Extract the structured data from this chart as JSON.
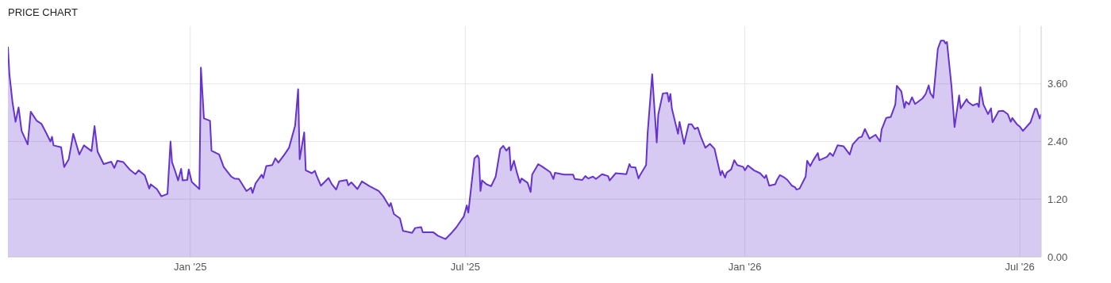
{
  "chart_data": {
    "type": "area",
    "title": "PRICE CHART",
    "x": [
      "2024-09-03",
      "2024-09-04",
      "2024-09-06",
      "2024-09-08",
      "2024-09-10",
      "2024-09-12",
      "2024-09-16",
      "2024-09-18",
      "2024-09-22",
      "2024-09-25",
      "2024-09-28",
      "2024-10-01",
      "2024-10-02",
      "2024-10-03",
      "2024-10-08",
      "2024-10-10",
      "2024-10-13",
      "2024-10-16",
      "2024-10-20",
      "2024-10-23",
      "2024-10-28",
      "2024-10-30",
      "2024-11-01",
      "2024-11-05",
      "2024-11-10",
      "2024-11-12",
      "2024-11-14",
      "2024-11-18",
      "2024-11-22",
      "2024-11-26",
      "2024-11-28",
      "2024-12-02",
      "2024-12-05",
      "2024-12-06",
      "2024-12-10",
      "2024-12-13",
      "2024-12-17",
      "2024-12-19",
      "2024-12-20",
      "2024-12-22",
      "2024-12-24",
      "2024-12-26",
      "2024-12-27",
      "2024-12-30",
      "2024-12-31",
      "2025-01-02",
      "2025-01-07",
      "2025-01-08",
      "2025-01-10",
      "2025-01-14",
      "2025-01-15",
      "2025-01-20",
      "2025-01-23",
      "2025-01-28",
      "2025-01-30",
      "2025-02-02",
      "2025-02-07",
      "2025-02-10",
      "2025-02-11",
      "2025-02-13",
      "2025-02-17",
      "2025-02-18",
      "2025-02-20",
      "2025-02-24",
      "2025-02-26",
      "2025-02-28",
      "2025-03-04",
      "2025-03-07",
      "2025-03-11",
      "2025-03-13",
      "2025-03-14",
      "2025-03-17",
      "2025-03-18",
      "2025-03-22",
      "2025-03-24",
      "2025-03-25",
      "2025-03-28",
      "2025-04-02",
      "2025-04-04",
      "2025-04-07",
      "2025-04-09",
      "2025-04-14",
      "2025-04-15",
      "2025-04-17",
      "2025-04-21",
      "2025-04-24",
      "2025-04-29",
      "2025-05-05",
      "2025-05-08",
      "2025-05-12",
      "2025-05-13",
      "2025-05-15",
      "2025-05-19",
      "2025-05-21",
      "2025-05-27",
      "2025-05-29",
      "2025-06-02",
      "2025-06-03",
      "2025-06-10",
      "2025-06-13",
      "2025-06-18",
      "2025-06-22",
      "2025-06-25",
      "2025-06-30",
      "2025-07-02",
      "2025-07-03",
      "2025-07-07",
      "2025-07-09",
      "2025-07-10",
      "2025-07-11",
      "2025-07-12",
      "2025-07-15",
      "2025-07-18",
      "2025-07-21",
      "2025-07-24",
      "2025-07-26",
      "2025-07-28",
      "2025-07-30",
      "2025-07-31",
      "2025-08-02",
      "2025-08-04",
      "2025-08-06",
      "2025-08-07",
      "2025-08-11",
      "2025-08-13",
      "2025-08-14",
      "2025-08-18",
      "2025-08-21",
      "2025-08-26",
      "2025-08-28",
      "2025-08-29",
      "2025-09-04",
      "2025-09-10",
      "2025-09-11",
      "2025-09-16",
      "2025-09-18",
      "2025-09-20",
      "2025-09-23",
      "2025-09-25",
      "2025-09-29",
      "2025-10-03",
      "2025-10-04",
      "2025-10-08",
      "2025-10-15",
      "2025-10-17",
      "2025-10-18",
      "2025-10-21",
      "2025-10-23",
      "2025-10-24",
      "2025-10-28",
      "2025-10-29",
      "2025-11-01",
      "2025-11-04",
      "2025-11-05",
      "2025-11-08",
      "2025-11-11",
      "2025-11-12",
      "2025-11-13",
      "2025-11-14",
      "2025-11-18",
      "2025-11-19",
      "2025-11-22",
      "2025-11-25",
      "2025-11-27",
      "2025-11-29",
      "2025-12-01",
      "2025-12-03",
      "2025-12-06",
      "2025-12-09",
      "2025-12-12",
      "2025-12-16",
      "2025-12-17",
      "2025-12-19",
      "2025-12-20",
      "2025-12-23",
      "2025-12-25",
      "2025-12-27",
      "2025-12-31",
      "2026-01-01",
      "2026-01-03",
      "2026-01-07",
      "2026-01-11",
      "2026-01-14",
      "2026-01-15",
      "2026-01-17",
      "2026-01-21",
      "2026-01-22",
      "2026-01-24",
      "2026-01-27",
      "2026-01-29",
      "2026-02-01",
      "2026-02-03",
      "2026-02-04",
      "2026-02-06",
      "2026-02-10",
      "2026-02-11",
      "2026-02-13",
      "2026-02-15",
      "2026-02-18",
      "2026-02-19",
      "2026-02-24",
      "2026-02-26",
      "2026-02-28",
      "2026-03-03",
      "2026-03-07",
      "2026-03-11",
      "2026-03-13",
      "2026-03-17",
      "2026-03-19",
      "2026-03-21",
      "2026-03-24",
      "2026-03-28",
      "2026-03-31",
      "2026-04-01",
      "2026-04-04",
      "2026-04-07",
      "2026-04-10",
      "2026-04-11",
      "2026-04-14",
      "2026-04-16",
      "2026-04-17",
      "2026-04-19",
      "2026-04-21",
      "2026-04-23",
      "2026-04-28",
      "2026-04-30",
      "2026-05-02",
      "2026-05-03",
      "2026-05-05",
      "2026-05-08",
      "2026-05-10",
      "2026-05-12",
      "2026-05-13",
      "2026-05-14",
      "2026-05-17",
      "2026-05-19",
      "2026-05-22",
      "2026-05-23",
      "2026-05-27",
      "2026-05-28",
      "2026-05-31",
      "2026-06-03",
      "2026-06-04",
      "2026-06-05",
      "2026-06-07",
      "2026-06-10",
      "2026-06-12",
      "2026-06-13",
      "2026-06-17",
      "2026-06-20",
      "2026-06-23",
      "2026-06-25",
      "2026-06-26",
      "2026-06-29",
      "2026-07-01",
      "2026-07-03",
      "2026-07-08",
      "2026-07-11",
      "2026-07-12",
      "2026-07-14",
      "2026-07-15"
    ],
    "series": [
      {
        "color": "#6633cc",
        "values": [
          4.37,
          3.79,
          3.22,
          2.81,
          3.11,
          2.62,
          2.34,
          3.02,
          2.83,
          2.77,
          2.59,
          2.4,
          2.5,
          2.32,
          2.28,
          1.87,
          2.03,
          2.56,
          2.13,
          2.32,
          2.2,
          2.72,
          2.19,
          1.93,
          1.98,
          1.85,
          2.0,
          1.97,
          1.82,
          1.72,
          1.8,
          1.7,
          1.42,
          1.51,
          1.41,
          1.26,
          1.31,
          2.4,
          1.97,
          1.79,
          1.59,
          1.83,
          1.59,
          1.6,
          1.82,
          1.56,
          1.41,
          3.94,
          2.88,
          2.83,
          2.21,
          2.13,
          1.87,
          1.67,
          1.63,
          1.62,
          1.37,
          1.44,
          1.33,
          1.53,
          1.71,
          1.64,
          1.89,
          1.91,
          2.05,
          1.96,
          2.13,
          2.27,
          2.73,
          3.49,
          2.03,
          2.59,
          1.8,
          1.74,
          1.79,
          1.7,
          1.48,
          1.64,
          1.52,
          1.4,
          1.57,
          1.6,
          1.49,
          1.55,
          1.41,
          1.57,
          1.47,
          1.37,
          1.26,
          1.05,
          1.12,
          0.89,
          0.8,
          0.54,
          0.5,
          0.6,
          0.62,
          0.51,
          0.51,
          0.44,
          0.37,
          0.5,
          0.61,
          0.84,
          1.07,
          0.92,
          2.05,
          2.11,
          2.05,
          1.37,
          1.59,
          1.51,
          1.47,
          1.67,
          2.24,
          2.31,
          2.21,
          2.28,
          1.8,
          2.0,
          1.75,
          1.54,
          1.63,
          1.54,
          1.35,
          1.71,
          1.93,
          1.87,
          1.76,
          1.62,
          1.75,
          1.71,
          1.71,
          1.62,
          1.6,
          1.68,
          1.63,
          1.67,
          1.62,
          1.72,
          1.68,
          1.59,
          1.74,
          1.72,
          1.93,
          1.87,
          1.86,
          1.63,
          1.7,
          1.91,
          2.57,
          3.8,
          2.38,
          2.96,
          3.4,
          3.41,
          3.23,
          3.39,
          3.08,
          2.56,
          2.81,
          2.35,
          2.76,
          2.76,
          2.66,
          2.69,
          2.5,
          2.27,
          2.35,
          2.25,
          1.7,
          1.79,
          1.65,
          1.75,
          1.82,
          2.01,
          1.91,
          1.87,
          1.8,
          1.9,
          1.8,
          1.74,
          1.64,
          1.7,
          1.48,
          1.51,
          1.59,
          1.7,
          1.65,
          1.6,
          1.48,
          1.45,
          1.4,
          1.42,
          1.67,
          2.0,
          1.89,
          2.01,
          2.16,
          2.01,
          2.08,
          2.16,
          2.1,
          2.32,
          2.3,
          2.13,
          2.34,
          2.48,
          2.5,
          2.66,
          2.46,
          2.54,
          2.4,
          2.65,
          2.89,
          2.91,
          3.17,
          3.56,
          3.44,
          3.1,
          3.23,
          3.17,
          3.32,
          3.18,
          3.3,
          3.39,
          3.57,
          3.41,
          3.31,
          4.33,
          4.5,
          4.5,
          4.44,
          4.47,
          3.55,
          2.7,
          3.36,
          3.09,
          3.28,
          3.22,
          3.15,
          3.19,
          3.12,
          3.53,
          3.17,
          2.97,
          3.09,
          2.8,
          3.03,
          3.04,
          2.97,
          2.81,
          2.89,
          2.76,
          2.71,
          2.62,
          2.8,
          3.08,
          3.08,
          2.88,
          2.97
        ]
      }
    ],
    "xlim": [
      "2024-09-03",
      "2026-07-15"
    ],
    "xticks": [
      {
        "value": "2025-01-01",
        "label": "Jan '25"
      },
      {
        "value": "2025-07-01",
        "label": "Jul '25"
      },
      {
        "value": "2026-01-01",
        "label": "Jan '26"
      },
      {
        "value": "2026-07-01",
        "label": "Jul '26"
      }
    ],
    "ylim": [
      0,
      4.8
    ],
    "yticks": [
      {
        "value": 0,
        "label": "0.00"
      },
      {
        "value": 1.2,
        "label": "1.20"
      },
      {
        "value": 2.4,
        "label": "2.40"
      },
      {
        "value": 3.6,
        "label": "3.60"
      }
    ],
    "grid": true
  }
}
